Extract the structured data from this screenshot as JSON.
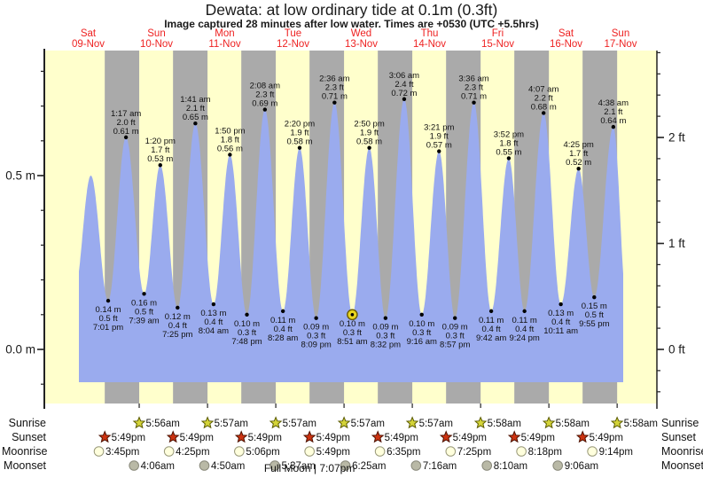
{
  "title": "Dewata: at low  ordinary tide at 0.1m (0.3ft)",
  "subtitle": "Image captured 28 minutes after low water. Times are +0530 (UTC +5.5hrs)",
  "colors": {
    "background": "#ffffff",
    "day_band": "#ffffcc",
    "night_band": "#aaaaaa",
    "tide_fill": "#9aabee",
    "day_label": "#ee2222",
    "axis": "#222222",
    "annotation_text": "#111111",
    "current_marker_fill": "#e8d51f",
    "current_marker_stroke": "#6b5a00",
    "sunrise_star_fill": "#d4d438",
    "sunrise_star_stroke": "#5a5a00",
    "sunset_star_fill": "#cc3311",
    "sunset_star_stroke": "#4d1100",
    "moonrise_fill": "#ffffdd",
    "moonrise_stroke": "#99997a",
    "moonset_fill": "#b9b9a6",
    "moonset_stroke": "#88887a"
  },
  "days": [
    {
      "dow": "Sat",
      "date": "09-Nov",
      "t_noon": 12
    },
    {
      "dow": "Sun",
      "date": "10-Nov",
      "t_noon": 36
    },
    {
      "dow": "Mon",
      "date": "11-Nov",
      "t_noon": 60
    },
    {
      "dow": "Tue",
      "date": "12-Nov",
      "t_noon": 84
    },
    {
      "dow": "Wed",
      "date": "13-Nov",
      "t_noon": 108
    },
    {
      "dow": "Thu",
      "date": "14-Nov",
      "t_noon": 132
    },
    {
      "dow": "Fri",
      "date": "15-Nov",
      "t_noon": 156
    },
    {
      "dow": "Sat",
      "date": "16-Nov",
      "t_noon": 180
    },
    {
      "dow": "Sun",
      "date": "17-Nov",
      "t_noon": 204
    }
  ],
  "axes": {
    "left_major": [
      {
        "v": 0.5,
        "label": "0.5 m"
      },
      {
        "v": 0.0,
        "label": "0.0 m"
      }
    ],
    "right_major": [
      {
        "ft": 2,
        "label": "2 ft"
      },
      {
        "ft": 1,
        "label": "1 ft"
      },
      {
        "ft": 0,
        "label": "0 ft"
      }
    ],
    "left_minor_step_m": 0.1,
    "right_minor_step_ft": 0.2
  },
  "chart_data": {
    "type": "area",
    "title": "Dewata: at low  ordinary tide at 0.1m (0.3ft)",
    "x_unit": "hours from 09-Nov 00:00 (+0530)",
    "ylabel_left": "meters",
    "ylabel_right": "feet",
    "ylim_m": [
      -0.16,
      0.87
    ],
    "x_range_hours": [
      -3.1,
      212
    ],
    "curve_time_span_hours": [
      8.73,
      200.1
    ],
    "grid": false,
    "tide_events": [
      {
        "t": 7.2,
        "v": 0.17,
        "type": "low",
        "labeled": false
      },
      {
        "t": 12.93,
        "v": 0.5,
        "type": "high",
        "labeled": false
      },
      {
        "t": 19.02,
        "v": 0.14,
        "type": "low",
        "labeled": true,
        "m": "0.14 m",
        "ft": "0.5 ft",
        "time": "7:01 pm"
      },
      {
        "t": 25.28,
        "v": 0.61,
        "type": "high",
        "labeled": true,
        "time": "1:17 am",
        "ft": "2.0 ft",
        "m": "0.61 m"
      },
      {
        "t": 31.65,
        "v": 0.16,
        "type": "low",
        "labeled": true,
        "m": "0.16 m",
        "ft": "0.5 ft",
        "time": "7:39 am"
      },
      {
        "t": 37.33,
        "v": 0.53,
        "type": "high",
        "labeled": true,
        "time": "1:20 pm",
        "ft": "1.7 ft",
        "m": "0.53 m"
      },
      {
        "t": 43.42,
        "v": 0.12,
        "type": "low",
        "labeled": true,
        "m": "0.12 m",
        "ft": "0.4 ft",
        "time": "7:25 pm"
      },
      {
        "t": 49.68,
        "v": 0.65,
        "type": "high",
        "labeled": true,
        "time": "1:41 am",
        "ft": "2.1 ft",
        "m": "0.65 m"
      },
      {
        "t": 56.07,
        "v": 0.13,
        "type": "low",
        "labeled": true,
        "m": "0.13 m",
        "ft": "0.4 ft",
        "time": "8:04 am"
      },
      {
        "t": 61.83,
        "v": 0.56,
        "type": "high",
        "labeled": true,
        "time": "1:50 pm",
        "ft": "1.8 ft",
        "m": "0.56 m"
      },
      {
        "t": 67.8,
        "v": 0.1,
        "type": "low",
        "labeled": true,
        "m": "0.10 m",
        "ft": "0.3 ft",
        "time": "7:48 pm"
      },
      {
        "t": 74.13,
        "v": 0.69,
        "type": "high",
        "labeled": true,
        "time": "2:08 am",
        "ft": "2.3 ft",
        "m": "0.69 m"
      },
      {
        "t": 80.47,
        "v": 0.11,
        "type": "low",
        "labeled": true,
        "m": "0.11 m",
        "ft": "0.4 ft",
        "time": "8:28 am"
      },
      {
        "t": 86.33,
        "v": 0.58,
        "type": "high",
        "labeled": true,
        "time": "2:20 pm",
        "ft": "1.9 ft",
        "m": "0.58 m"
      },
      {
        "t": 92.15,
        "v": 0.09,
        "type": "low",
        "labeled": true,
        "m": "0.09 m",
        "ft": "0.3 ft",
        "time": "8:09 pm"
      },
      {
        "t": 98.6,
        "v": 0.71,
        "type": "high",
        "labeled": true,
        "time": "2:36 am",
        "ft": "2.3 ft",
        "m": "0.71 m"
      },
      {
        "t": 104.85,
        "v": 0.1,
        "type": "low",
        "labeled": true,
        "m": "0.10 m",
        "ft": "0.3 ft",
        "time": "8:51 am",
        "current": true
      },
      {
        "t": 110.83,
        "v": 0.58,
        "type": "high",
        "labeled": true,
        "time": "2:50 pm",
        "ft": "1.9 ft",
        "m": "0.58 m"
      },
      {
        "t": 116.53,
        "v": 0.09,
        "type": "low",
        "labeled": true,
        "m": "0.09 m",
        "ft": "0.3 ft",
        "time": "8:32 pm"
      },
      {
        "t": 123.1,
        "v": 0.72,
        "type": "high",
        "labeled": true,
        "time": "3:06 am",
        "ft": "2.4 ft",
        "m": "0.72 m"
      },
      {
        "t": 129.27,
        "v": 0.1,
        "type": "low",
        "labeled": true,
        "m": "0.10 m",
        "ft": "0.3 ft",
        "time": "9:16 am"
      },
      {
        "t": 135.35,
        "v": 0.57,
        "type": "high",
        "labeled": true,
        "time": "3:21 pm",
        "ft": "1.9 ft",
        "m": "0.57 m"
      },
      {
        "t": 140.95,
        "v": 0.09,
        "type": "low",
        "labeled": true,
        "m": "0.09 m",
        "ft": "0.3 ft",
        "time": "8:57 pm"
      },
      {
        "t": 147.6,
        "v": 0.71,
        "type": "high",
        "labeled": true,
        "time": "3:36 am",
        "ft": "2.3 ft",
        "m": "0.71 m"
      },
      {
        "t": 153.7,
        "v": 0.11,
        "type": "low",
        "labeled": true,
        "m": "0.11 m",
        "ft": "0.4 ft",
        "time": "9:42 am"
      },
      {
        "t": 159.87,
        "v": 0.55,
        "type": "high",
        "labeled": true,
        "time": "3:52 pm",
        "ft": "1.8 ft",
        "m": "0.55 m"
      },
      {
        "t": 165.4,
        "v": 0.11,
        "type": "low",
        "labeled": true,
        "m": "0.11 m",
        "ft": "0.4 ft",
        "time": "9:24 pm"
      },
      {
        "t": 172.12,
        "v": 0.68,
        "type": "high",
        "labeled": true,
        "time": "4:07 am",
        "ft": "2.2 ft",
        "m": "0.68 m"
      },
      {
        "t": 178.18,
        "v": 0.13,
        "type": "low",
        "labeled": true,
        "m": "0.13 m",
        "ft": "0.4 ft",
        "time": "10:11 am"
      },
      {
        "t": 184.42,
        "v": 0.52,
        "type": "high",
        "labeled": true,
        "time": "4:25 pm",
        "ft": "1.7 ft",
        "m": "0.52 m"
      },
      {
        "t": 189.92,
        "v": 0.15,
        "type": "low",
        "labeled": true,
        "m": "0.15 m",
        "ft": "0.5 ft",
        "time": "9:55 pm"
      },
      {
        "t": 196.63,
        "v": 0.64,
        "type": "high",
        "labeled": true,
        "time": "4:38 am",
        "ft": "2.1 ft",
        "m": "0.64 m"
      },
      {
        "t": 201.4,
        "v": 0.13,
        "type": "low",
        "labeled": false
      }
    ]
  },
  "astro": {
    "row_labels": [
      "Sunrise",
      "Sunset",
      "Moonrise",
      "Moonset"
    ],
    "sunrise": [
      {
        "t": 29.93,
        "time": "5:56am"
      },
      {
        "t": 53.95,
        "time": "5:57am"
      },
      {
        "t": 77.95,
        "time": "5:57am"
      },
      {
        "t": 101.95,
        "time": "5:57am"
      },
      {
        "t": 125.95,
        "time": "5:57am"
      },
      {
        "t": 149.97,
        "time": "5:58am"
      },
      {
        "t": 173.97,
        "time": "5:58am"
      },
      {
        "t": 197.97,
        "time": "5:58am"
      }
    ],
    "sunset": [
      {
        "t": 17.82,
        "time": "5:49pm"
      },
      {
        "t": 41.82,
        "time": "5:49pm"
      },
      {
        "t": 65.82,
        "time": "5:49pm"
      },
      {
        "t": 89.82,
        "time": "5:49pm"
      },
      {
        "t": 113.82,
        "time": "5:49pm"
      },
      {
        "t": 137.82,
        "time": "5:49pm"
      },
      {
        "t": 161.82,
        "time": "5:49pm"
      },
      {
        "t": 185.82,
        "time": "5:49pm"
      }
    ],
    "moonrise": [
      {
        "t": 15.75,
        "time": "3:45pm"
      },
      {
        "t": 40.42,
        "time": "4:25pm"
      },
      {
        "t": 65.1,
        "time": "5:06pm"
      },
      {
        "t": 89.82,
        "time": "5:49pm"
      },
      {
        "t": 114.58,
        "time": "6:35pm"
      },
      {
        "t": 139.42,
        "time": "7:25pm"
      },
      {
        "t": 164.3,
        "time": "8:18pm"
      },
      {
        "t": 189.23,
        "time": "9:14pm"
      }
    ],
    "moonset": [
      {
        "t": 28.1,
        "time": "4:06am"
      },
      {
        "t": 52.83,
        "time": "4:50am"
      },
      {
        "t": 77.62,
        "time": "5:37am"
      },
      {
        "t": 102.42,
        "time": "6:25am"
      },
      {
        "t": 127.27,
        "time": "7:16am"
      },
      {
        "t": 152.17,
        "time": "8:10am"
      },
      {
        "t": 177.1,
        "time": "9:06am"
      }
    ],
    "full_moon": {
      "label": "Full Moon | 7:07pm",
      "t": 89.8
    }
  }
}
